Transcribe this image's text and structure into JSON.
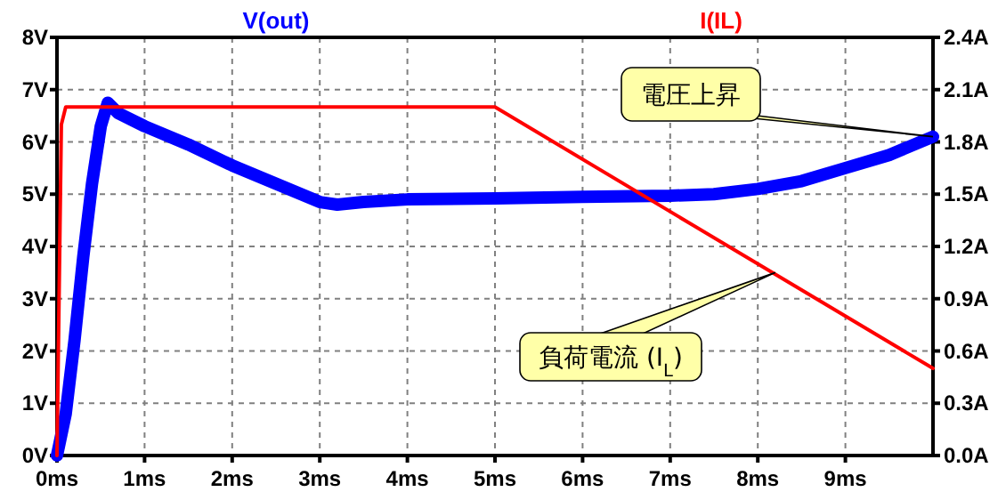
{
  "chart_data": {
    "type": "line",
    "xlim": [
      0,
      10
    ],
    "xticks": [
      {
        "value": 0,
        "label": "0ms"
      },
      {
        "value": 1,
        "label": "1ms"
      },
      {
        "value": 2,
        "label": "2ms"
      },
      {
        "value": 3,
        "label": "3ms"
      },
      {
        "value": 4,
        "label": "4ms"
      },
      {
        "value": 5,
        "label": "5ms"
      },
      {
        "value": 6,
        "label": "6ms"
      },
      {
        "value": 7,
        "label": "7ms"
      },
      {
        "value": 8,
        "label": "8ms"
      },
      {
        "value": 9,
        "label": "9ms"
      }
    ],
    "ylim": [
      0,
      8
    ],
    "yticks": [
      {
        "value": 0,
        "label": "0V"
      },
      {
        "value": 1,
        "label": "1V"
      },
      {
        "value": 2,
        "label": "2V"
      },
      {
        "value": 3,
        "label": "3V"
      },
      {
        "value": 4,
        "label": "4V"
      },
      {
        "value": 5,
        "label": "5V"
      },
      {
        "value": 6,
        "label": "6V"
      },
      {
        "value": 7,
        "label": "7V"
      },
      {
        "value": 8,
        "label": "8V"
      }
    ],
    "y2lim": [
      0,
      2.4
    ],
    "y2ticks": [
      {
        "value": 0,
        "label": "0.0A"
      },
      {
        "value": 0.3,
        "label": "0.3A"
      },
      {
        "value": 0.6,
        "label": "0.6A"
      },
      {
        "value": 0.9,
        "label": "0.9A"
      },
      {
        "value": 1.2,
        "label": "1.2A"
      },
      {
        "value": 1.5,
        "label": "1.5A"
      },
      {
        "value": 1.8,
        "label": "1.8A"
      },
      {
        "value": 2.1,
        "label": "2.1A"
      },
      {
        "value": 2.4,
        "label": "2.4A"
      }
    ],
    "grid": true,
    "legend": "top",
    "line_style": "solid",
    "series": [
      {
        "name": "V(out)",
        "color": "#0000ff",
        "x": [
          0,
          0.1,
          0.2,
          0.3,
          0.4,
          0.5,
          0.58,
          0.7,
          1,
          1.5,
          2,
          2.5,
          3,
          3.2,
          3.5,
          4,
          5,
          6,
          7,
          7.5,
          8,
          8.5,
          9,
          9.5,
          10
        ],
        "values": [
          0,
          0.8,
          2.2,
          3.8,
          5.2,
          6.3,
          6.75,
          6.55,
          6.3,
          5.95,
          5.55,
          5.2,
          4.85,
          4.8,
          4.85,
          4.9,
          4.92,
          4.95,
          4.97,
          5.0,
          5.1,
          5.25,
          5.5,
          5.75,
          6.1
        ]
      },
      {
        "name": "I(IL)",
        "color": "#ff0000",
        "axis": "y2",
        "x": [
          0,
          0.05,
          0.1,
          5,
          10
        ],
        "values": [
          0,
          1.9,
          2.0,
          2.0,
          0.5
        ]
      }
    ],
    "annotations": [
      {
        "text": "電圧上昇",
        "x": 10,
        "y": 6.1
      },
      {
        "text": "負荷電流 (I$_{L}$)",
        "x": 8.2,
        "y": 3.5
      }
    ]
  }
}
